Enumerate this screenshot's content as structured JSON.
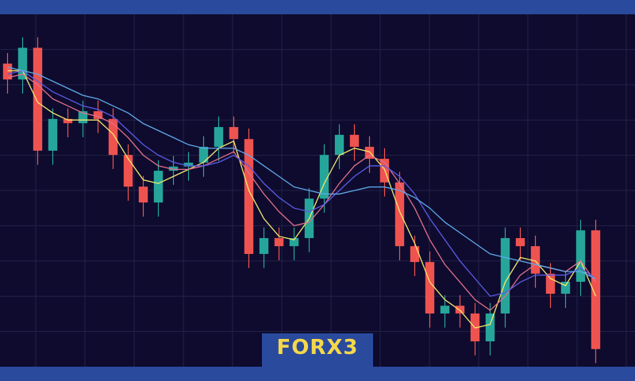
{
  "brand": "FORX3",
  "chart_data": {
    "type": "candlestick",
    "open": [
      86,
      81.5,
      90.5,
      61.3,
      70.3,
      69.1,
      72.5,
      70.3,
      60.1,
      51.1,
      46.6,
      55.6,
      56.8,
      57.9,
      62.4,
      68.0,
      64.6,
      32.0,
      36.5,
      34.2,
      36.5,
      47.7,
      60.1,
      65.8,
      62.4,
      59.0,
      52.3,
      34.2,
      29.7,
      15.1,
      17.3,
      15.1,
      7.2,
      15.1,
      36.5,
      34.2,
      26.4,
      20.7,
      24.1,
      38.7
    ],
    "high": [
      89,
      93.5,
      93.5,
      73.3,
      73.3,
      75.5,
      75.5,
      73.3,
      63.1,
      54.1,
      58.6,
      59.8,
      60.9,
      65.4,
      71.0,
      71.0,
      67.6,
      39.5,
      39.5,
      39.5,
      50.7,
      63.1,
      68.8,
      68.8,
      65.4,
      62.0,
      55.3,
      37.2,
      32.7,
      20.3,
      20.3,
      18.1,
      18.1,
      39.5,
      39.5,
      37.2,
      29.4,
      27.1,
      41.7,
      41.7
    ],
    "low": [
      77.5,
      77.5,
      57.3,
      57.3,
      65.1,
      65.1,
      66.3,
      56.1,
      47.1,
      42.6,
      42.6,
      51.6,
      52.8,
      53.9,
      58.4,
      60.6,
      28.0,
      28.0,
      30.2,
      30.2,
      32.5,
      43.7,
      56.1,
      58.4,
      55.0,
      48.3,
      30.2,
      25.7,
      11.1,
      11.1,
      11.1,
      3.2,
      3.2,
      11.1,
      30.2,
      22.4,
      16.7,
      16.7,
      20.1,
      1.0
    ],
    "close": [
      81.5,
      90.5,
      61.3,
      70.3,
      69.1,
      72.5,
      70.3,
      60.1,
      51.1,
      46.6,
      55.6,
      56.8,
      57.9,
      62.4,
      68.0,
      64.6,
      32.0,
      36.5,
      34.2,
      36.5,
      47.7,
      60.1,
      65.8,
      62.4,
      59.0,
      52.3,
      34.2,
      29.7,
      15.1,
      17.3,
      15.1,
      7.2,
      15.1,
      36.5,
      34.2,
      26.4,
      20.7,
      24.1,
      38.7,
      5.0
    ],
    "up_color": "#26a69a",
    "down_color": "#ef5350",
    "series": [
      {
        "color": "#f2e86d",
        "values": [
          84,
          84,
          75,
          72,
          70,
          70,
          70,
          66,
          59,
          53,
          52,
          54,
          56,
          58,
          62,
          64,
          50,
          42,
          37,
          36,
          42,
          52,
          60,
          62,
          61,
          56,
          44,
          35,
          24,
          19,
          16,
          11,
          12,
          24,
          31,
          30,
          25,
          23,
          30,
          20
        ]
      },
      {
        "color": "#e0708a",
        "values": [
          82,
          83,
          80,
          76,
          74,
          72,
          71,
          69,
          65,
          60,
          57,
          56,
          56,
          57,
          59,
          61,
          55,
          49,
          44,
          40,
          41,
          46,
          52,
          57,
          60,
          58,
          52,
          45,
          36,
          29,
          24,
          19,
          16,
          20,
          26,
          29,
          28,
          27,
          30,
          24
        ]
      },
      {
        "color": "#5b5be6",
        "values": [
          83,
          84,
          81,
          78,
          76,
          74,
          73,
          71,
          67,
          63,
          60,
          58,
          57,
          57,
          58,
          60,
          57,
          52,
          48,
          45,
          44,
          46,
          50,
          54,
          57,
          57,
          54,
          49,
          42,
          36,
          30,
          25,
          20,
          21,
          24,
          26,
          26,
          26,
          28,
          25
        ]
      },
      {
        "color": "#5fa8e8",
        "values": [
          85,
          84,
          83,
          81,
          79,
          77,
          76,
          74,
          72,
          69,
          67,
          65,
          63,
          62,
          62,
          62,
          60,
          57,
          54,
          51,
          50,
          49,
          49,
          50,
          51,
          51,
          50,
          48,
          45,
          41,
          38,
          35,
          32,
          31,
          30,
          29,
          28,
          27,
          27,
          25
        ]
      }
    ],
    "ylim": [
      0,
      100
    ],
    "yticks": [
      10,
      20,
      30,
      40,
      50,
      60,
      70,
      80,
      90
    ],
    "grid": true
  }
}
